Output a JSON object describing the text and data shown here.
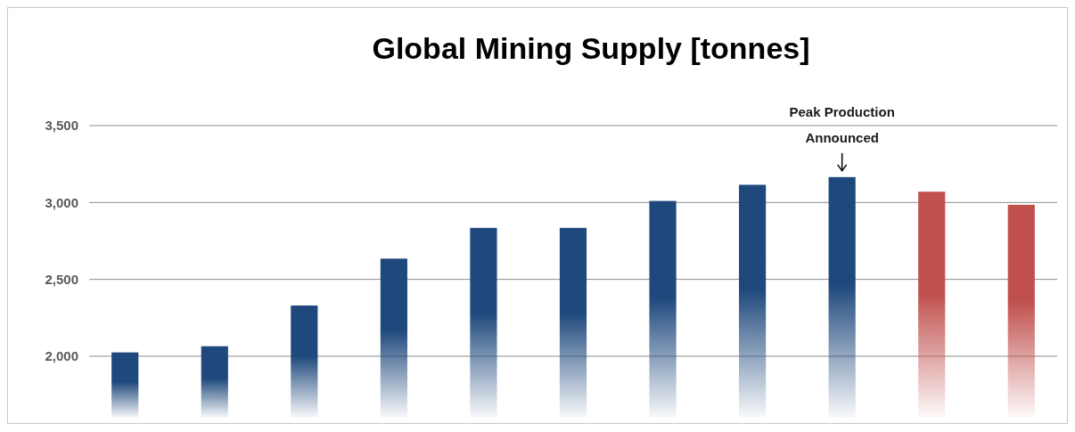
{
  "chart_data": {
    "type": "bar",
    "title": "Global Mining Supply [tonnes]",
    "categories": [
      null,
      null,
      null,
      null,
      null,
      null,
      null,
      null,
      null,
      null,
      null
    ],
    "values": [
      2025,
      2065,
      2330,
      2635,
      2835,
      2835,
      3010,
      3115,
      3165,
      3070,
      2985
    ],
    "colors": [
      "#1f497d",
      "#1f497d",
      "#1f497d",
      "#1f497d",
      "#1f497d",
      "#1f497d",
      "#1f497d",
      "#1f497d",
      "#1f497d",
      "#c0504d",
      "#c0504d"
    ],
    "ylim": [
      1600,
      3500
    ],
    "yticks": [
      {
        "value": 2000,
        "label": "2,000"
      },
      {
        "value": 2500,
        "label": "2,500"
      },
      {
        "value": 3000,
        "label": "3,000"
      },
      {
        "value": 3500,
        "label": "3,500"
      }
    ],
    "grid": "y",
    "annotations": [
      {
        "text": "Peak Production Announced",
        "y": 3165
      }
    ]
  }
}
